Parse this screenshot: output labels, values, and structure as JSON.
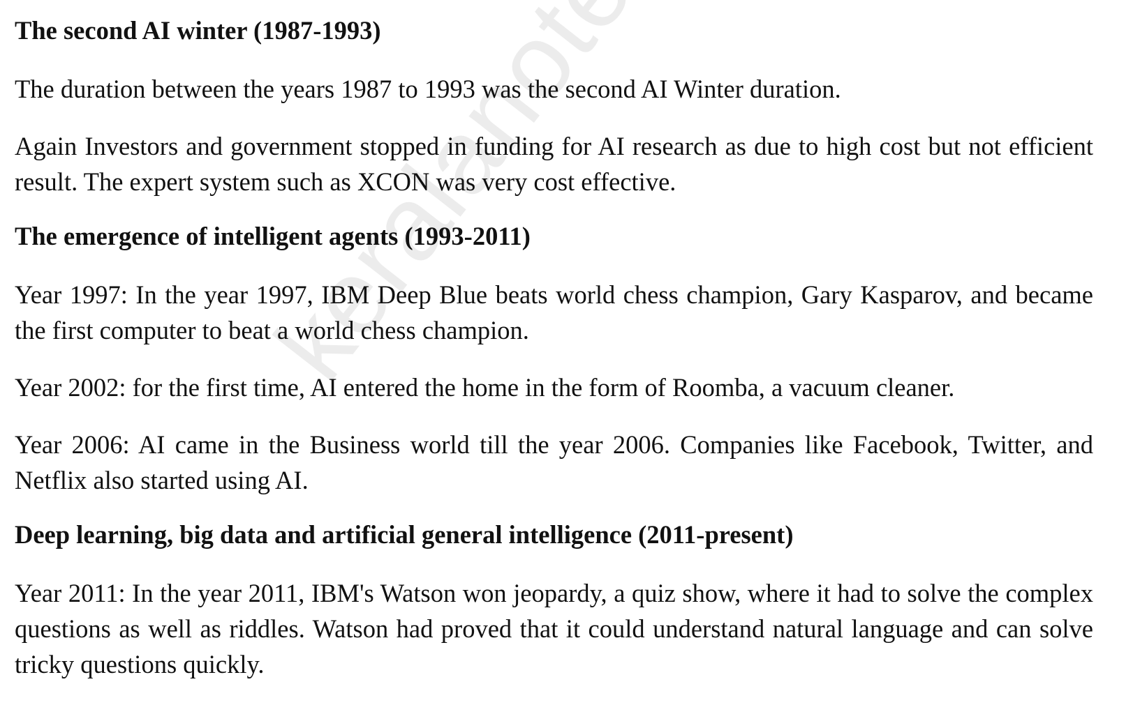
{
  "watermark": "keralanotes",
  "sections": {
    "s1_heading": "The second AI winter (1987-1993)",
    "s1_p1": "The duration between the years 1987 to 1993 was the second AI Winter duration.",
    "s1_p2": "Again Investors and government stopped in funding for AI research as due to high cost but not efficient result. The expert system such as XCON was very cost effective.",
    "s2_heading": "The emergence of intelligent agents (1993-2011)",
    "s2_p1": "Year 1997: In the year 1997, IBM Deep Blue beats world chess champion, Gary Kasparov, and became the first computer to beat a world chess champion.",
    "s2_p2": "Year 2002: for the first time, AI entered the home in the form of Roomba, a vacuum cleaner.",
    "s2_p3": "Year 2006: AI came in the Business world till the year 2006. Companies like Facebook, Twitter, and Netflix also started using AI.",
    "s3_heading": "Deep learning, big data and artificial general intelligence (2011-present)",
    "s3_p1": "Year 2011: In the year 2011, IBM's Watson won jeopardy, a quiz show, where it had to solve the complex questions as well as riddles. Watson had proved that it could understand natural language and can solve tricky questions quickly."
  }
}
